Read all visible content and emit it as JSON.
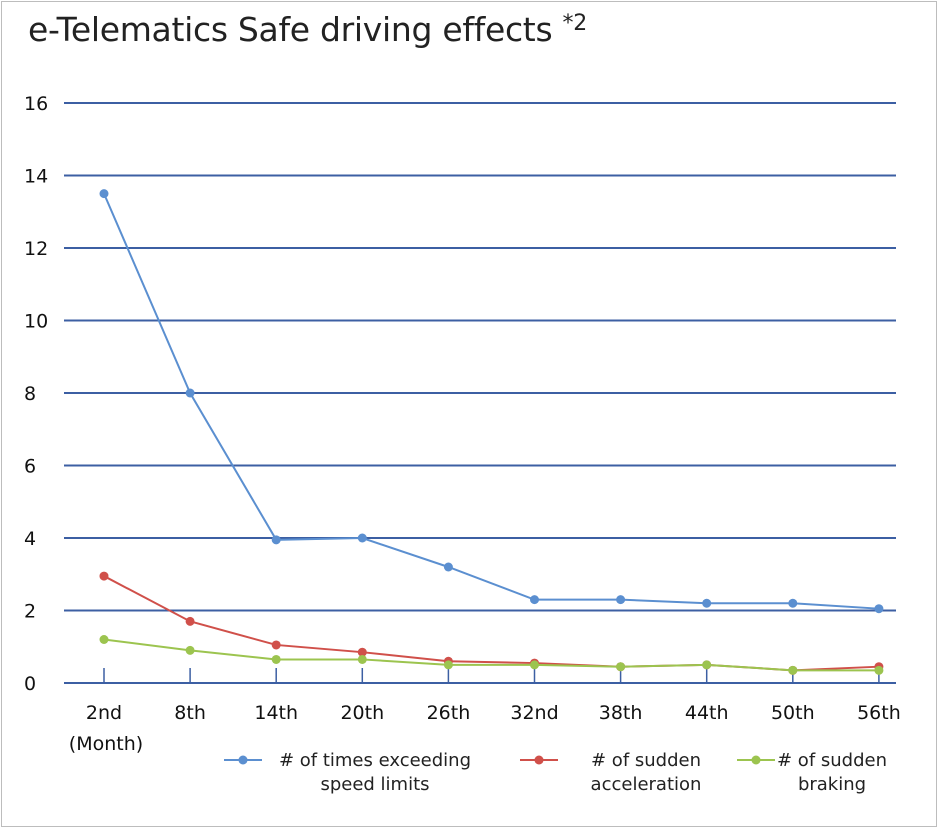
{
  "chart_data": {
    "type": "line",
    "title": "e-Telematics Safe driving effects",
    "title_superscript": "*2",
    "categories": [
      "2nd",
      "8th",
      "14th",
      "20th",
      "26th",
      "32nd",
      "38th",
      "44th",
      "50th",
      "56th"
    ],
    "x_unit_label": "(Month)",
    "ylim": [
      0,
      16
    ],
    "yticks": [
      0,
      2,
      4,
      6,
      8,
      10,
      12,
      14,
      16
    ],
    "grid": true,
    "series": [
      {
        "name_lines": [
          "# of times exceeding",
          "speed limits"
        ],
        "color": "#5b8fd0",
        "values": [
          13.5,
          8.0,
          3.95,
          4.0,
          3.2,
          2.3,
          2.3,
          2.2,
          2.2,
          2.05
        ]
      },
      {
        "name_lines": [
          "# of sudden",
          "acceleration"
        ],
        "color": "#d0504a",
        "values": [
          2.95,
          1.7,
          1.05,
          0.85,
          0.6,
          0.55,
          0.45,
          0.5,
          0.35,
          0.45
        ]
      },
      {
        "name_lines": [
          "# of sudden",
          "braking"
        ],
        "color": "#9cc44f",
        "values": [
          1.2,
          0.9,
          0.65,
          0.65,
          0.5,
          0.5,
          0.45,
          0.5,
          0.35,
          0.35
        ]
      }
    ],
    "legend_position": "bottom-right"
  },
  "colors": {
    "grid": "#3c5fa3",
    "axis": "#3c5fa3"
  }
}
